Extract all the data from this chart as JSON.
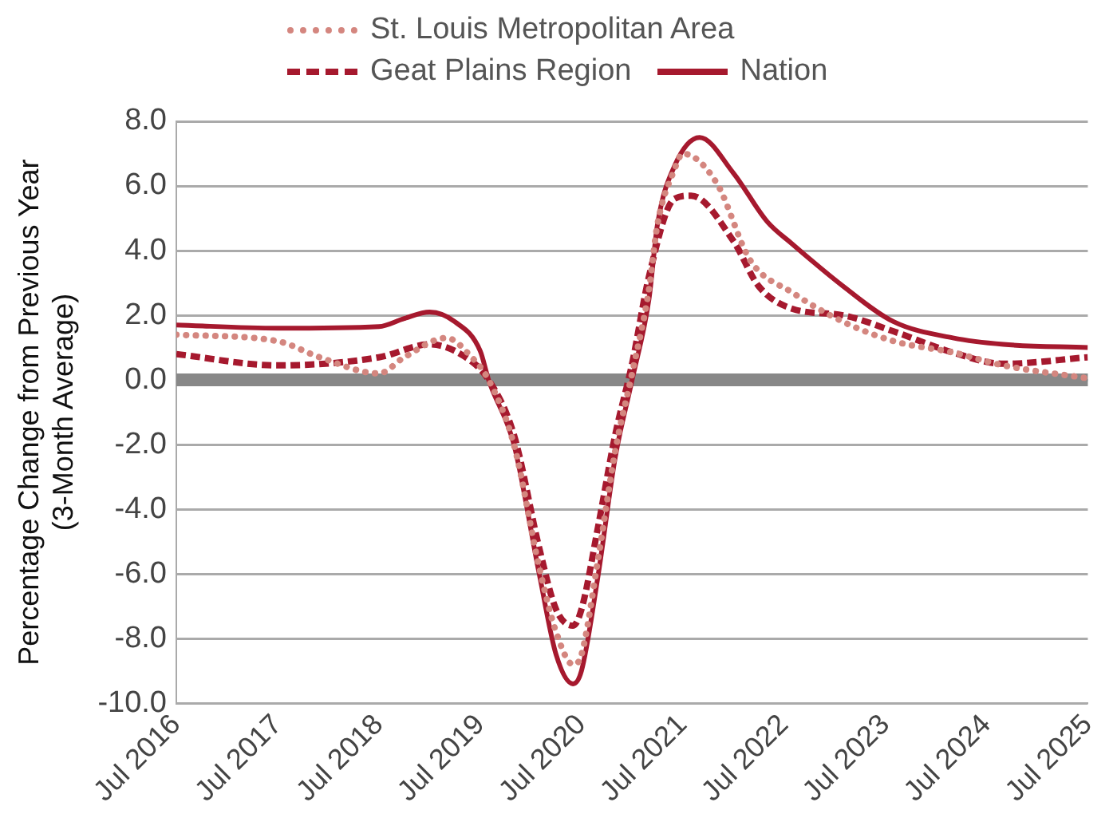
{
  "chart_data": {
    "type": "line",
    "ylabel": "Percentage Change from Previous Year\n(3-Month Average)",
    "xlim": [
      "2016-07",
      "2025-07"
    ],
    "xticks": [
      {
        "value": "2016-07",
        "label": "Jul 2016"
      },
      {
        "value": "2017-07",
        "label": "Jul 2017"
      },
      {
        "value": "2018-07",
        "label": "Jul 2018"
      },
      {
        "value": "2019-07",
        "label": "Jul 2019"
      },
      {
        "value": "2020-07",
        "label": "Jul 2020"
      },
      {
        "value": "2021-07",
        "label": "Jul 2021"
      },
      {
        "value": "2022-07",
        "label": "Jul 2022"
      },
      {
        "value": "2023-07",
        "label": "Jul 2023"
      },
      {
        "value": "2024-07",
        "label": "Jul 2024"
      },
      {
        "value": "2025-07",
        "label": "Jul 2025"
      }
    ],
    "ylim": [
      -10,
      8
    ],
    "yticks": [
      {
        "value": -10,
        "label": "-10.0"
      },
      {
        "value": -8,
        "label": "-8.0"
      },
      {
        "value": -6,
        "label": "-6.0"
      },
      {
        "value": -4,
        "label": "-4.0"
      },
      {
        "value": -2,
        "label": "-2.0"
      },
      {
        "value": 0,
        "label": "0.0"
      },
      {
        "value": 2,
        "label": "2.0"
      },
      {
        "value": 4,
        "label": "4.0"
      },
      {
        "value": 6,
        "label": "6.0"
      },
      {
        "value": 8,
        "label": "8.0"
      }
    ],
    "grid": "y",
    "legend": "top",
    "marker": "none",
    "ref_lines": [
      {
        "axis": "y",
        "value": 0,
        "color": "#888888"
      }
    ],
    "series": [
      {
        "name": "St. Louis Metropolitan Area",
        "color": "#d4867f",
        "line_style": "dotted",
        "x": [
          "2016-07",
          "2017-07",
          "2017-12",
          "2018-07",
          "2018-10",
          "2019-03",
          "2019-06",
          "2019-08",
          "2019-11",
          "2020-02",
          "2020-04",
          "2020-06",
          "2020-07",
          "2020-09",
          "2020-11",
          "2021-01",
          "2021-03",
          "2021-04",
          "2021-06",
          "2021-07",
          "2021-11",
          "2022-03",
          "2022-08",
          "2023-02",
          "2023-08",
          "2024-03",
          "2024-09",
          "2025-07"
        ],
        "values": [
          1.4,
          1.2,
          0.7,
          0.2,
          0.7,
          1.3,
          0.7,
          0,
          -2.0,
          -5.8,
          -7.8,
          -8.8,
          -8.5,
          -5.5,
          -2.2,
          0.2,
          2.8,
          4.8,
          6.5,
          7.0,
          6.1,
          3.7,
          2.7,
          1.8,
          1.2,
          0.85,
          0.45,
          0.05
        ]
      },
      {
        "name": "Geat Plains Region",
        "color": "#a6192e",
        "line_style": "dashed",
        "x": [
          "2016-07",
          "2017-07",
          "2018-07",
          "2019-01",
          "2019-05",
          "2019-08",
          "2019-11",
          "2020-02",
          "2020-04",
          "2020-06",
          "2020-07",
          "2020-09",
          "2020-11",
          "2021-01",
          "2021-03",
          "2021-06",
          "2021-08",
          "2022-01",
          "2022-04",
          "2022-08",
          "2023-02",
          "2023-08",
          "2024-03",
          "2024-09",
          "2025-07"
        ],
        "values": [
          0.8,
          0.45,
          0.7,
          1.1,
          0.75,
          0,
          -1.7,
          -5.2,
          -7.1,
          -7.6,
          -7.1,
          -4.5,
          -1.7,
          0.5,
          3.2,
          5.6,
          5.7,
          4.3,
          2.9,
          2.2,
          2.0,
          1.5,
          0.85,
          0.5,
          0.7
        ]
      },
      {
        "name": "Nation",
        "color": "#a6192e",
        "line_style": "solid",
        "x": [
          "2016-07",
          "2017-07",
          "2018-07",
          "2018-10",
          "2019-01",
          "2019-04",
          "2019-07",
          "2019-08",
          "2019-11",
          "2020-02",
          "2020-04",
          "2020-06",
          "2020-07",
          "2020-09",
          "2020-11",
          "2021-01",
          "2021-03",
          "2021-04",
          "2021-06",
          "2021-09",
          "2022-01",
          "2022-05",
          "2022-08",
          "2023-02",
          "2023-08",
          "2024-03",
          "2024-09",
          "2025-07"
        ],
        "values": [
          1.7,
          1.6,
          1.65,
          1.9,
          2.1,
          1.8,
          0.9,
          0,
          -2.0,
          -6.0,
          -8.5,
          -9.4,
          -9.0,
          -6.0,
          -2.4,
          0,
          2.5,
          4.8,
          6.6,
          7.5,
          6.4,
          4.9,
          4.2,
          2.9,
          1.8,
          1.3,
          1.1,
          1.0
        ]
      }
    ]
  }
}
